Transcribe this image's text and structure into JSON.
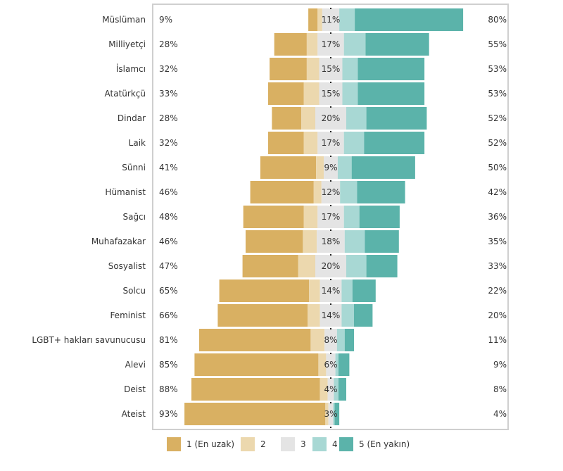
{
  "chart_data": {
    "type": "bar",
    "subtype": "diverging-stacked",
    "legend": [
      "1 (En uzak)",
      "2",
      "3",
      "4",
      "5 (En yakın)"
    ],
    "legend_position": "bottom",
    "colors": [
      "#d9b062",
      "#ecd8ae",
      "#e4e4e4",
      "#a8d8d4",
      "#5bb3aa"
    ],
    "categories": [
      "Müslüman",
      "Milliyetçi",
      "İslamcı",
      "Atatürkçü",
      "Dindar",
      "Laik",
      "Sünni",
      "Hümanist",
      "Sağcı",
      "Muhafazakar",
      "Sosyalist",
      "Solcu",
      "Feminist",
      "LGBT+ hakları savunucusu",
      "Alevi",
      "Deist",
      "Ateist"
    ],
    "series": [
      {
        "name": "1 (En uzak)",
        "values": [
          6,
          21,
          24,
          23,
          19,
          23,
          36,
          41,
          39,
          37,
          36,
          58,
          58,
          72,
          80,
          83,
          91
        ]
      },
      {
        "name": "2",
        "values": [
          3,
          7,
          8,
          10,
          9,
          9,
          5,
          5,
          9,
          9,
          11,
          7,
          8,
          9,
          5,
          5,
          2
        ]
      },
      {
        "name": "3",
        "values": [
          11,
          17,
          15,
          15,
          20,
          17,
          9,
          12,
          17,
          18,
          20,
          14,
          14,
          8,
          6,
          4,
          3
        ]
      },
      {
        "name": "4",
        "values": [
          10,
          14,
          10,
          10,
          13,
          13,
          9,
          11,
          10,
          13,
          13,
          7,
          8,
          5,
          2,
          3,
          1
        ]
      },
      {
        "name": "5 (En yakın)",
        "values": [
          70,
          41,
          43,
          43,
          39,
          39,
          41,
          31,
          26,
          22,
          20,
          15,
          12,
          6,
          7,
          5,
          3
        ]
      }
    ],
    "left_labels": [
      "9%",
      "28%",
      "32%",
      "33%",
      "28%",
      "32%",
      "41%",
      "46%",
      "48%",
      "46%",
      "47%",
      "65%",
      "66%",
      "81%",
      "85%",
      "88%",
      "93%"
    ],
    "mid_labels": [
      "11%",
      "17%",
      "15%",
      "15%",
      "20%",
      "17%",
      "9%",
      "12%",
      "17%",
      "18%",
      "20%",
      "14%",
      "14%",
      "8%",
      "6%",
      "4%",
      "3%"
    ],
    "right_labels": [
      "80%",
      "55%",
      "53%",
      "53%",
      "52%",
      "52%",
      "50%",
      "42%",
      "36%",
      "35%",
      "33%",
      "22%",
      "20%",
      "11%",
      "9%",
      "8%",
      "4%"
    ]
  }
}
